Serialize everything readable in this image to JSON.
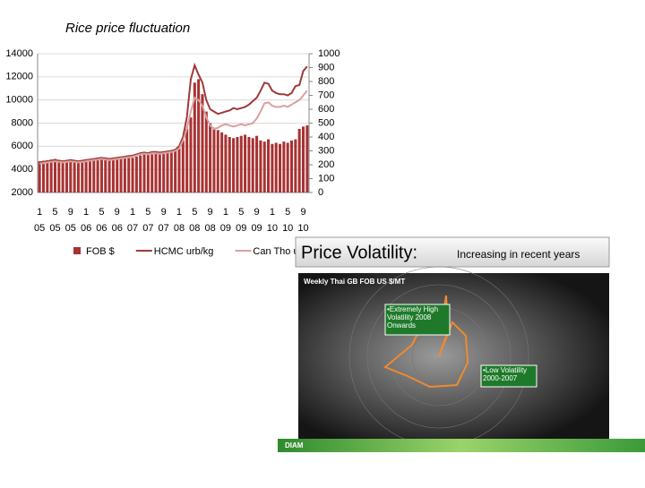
{
  "chart_data": {
    "type": "bar_line",
    "title": "Rice price fluctuation",
    "categories": [
      "1 05",
      null,
      null,
      null,
      "5 05",
      null,
      null,
      null,
      "9 05",
      null,
      null,
      null,
      "1 06",
      null,
      null,
      null,
      "5 06",
      null,
      null,
      null,
      "9 06",
      null,
      null,
      null,
      "1 07",
      null,
      null,
      null,
      "5 07",
      null,
      null,
      null,
      "9 07",
      null,
      null,
      null,
      "1 08",
      null,
      null,
      null,
      "5 08",
      null,
      null,
      null,
      "9 08",
      null,
      null,
      null,
      "1 09",
      null,
      null,
      null,
      "5 09",
      null,
      null,
      null,
      "9 09",
      null,
      null,
      null,
      "1 10",
      null,
      null,
      null,
      "5 10",
      null,
      null,
      null,
      "9 10",
      null
    ],
    "series": [
      {
        "name": "FOB $",
        "kind": "bar",
        "color": "#a83232",
        "values": [
          4700,
          4750,
          4800,
          4850,
          4900,
          4800,
          4750,
          4800,
          4850,
          4800,
          4750,
          4800,
          4700,
          4750,
          4800,
          4850,
          4900,
          4850,
          4800,
          4900,
          4950,
          5000,
          4950,
          5000,
          5000,
          5100,
          5200,
          5300,
          5250,
          5300,
          5400,
          5350,
          5400,
          5500,
          5600,
          5700,
          6000,
          6500,
          7500,
          8500,
          11500,
          11800,
          10500,
          9000,
          8000,
          7600,
          7400,
          7200,
          7000,
          6800,
          6700,
          6800,
          6900,
          7000,
          6800,
          6700,
          6900,
          6500,
          6400,
          6600,
          6200,
          6300,
          6200,
          6400,
          6300,
          6500,
          6600,
          7500,
          7700,
          7800
        ]
      },
      {
        "name": "HCMC urb/kg",
        "kind": "line",
        "color": "#9e3a3a",
        "values": [
          4600,
          4650,
          4700,
          4750,
          4800,
          4750,
          4700,
          4750,
          4800,
          4750,
          4700,
          4750,
          4800,
          4850,
          4900,
          4950,
          5000,
          4950,
          4900,
          4950,
          5000,
          5050,
          5100,
          5150,
          5200,
          5300,
          5400,
          5450,
          5400,
          5500,
          5500,
          5450,
          5500,
          5550,
          5600,
          5700,
          6000,
          6800,
          8500,
          11800,
          13000,
          12200,
          11500,
          10000,
          9200,
          9000,
          8800,
          8900,
          9000,
          9100,
          9300,
          9200,
          9300,
          9400,
          9600,
          9900,
          10200,
          10800,
          11500,
          11400,
          10800,
          10600,
          10500,
          10500,
          10400,
          10600,
          11200,
          11300,
          12500,
          12900
        ]
      },
      {
        "name": "Can Tho urb/kg",
        "kind": "line",
        "color": "#d9a0a0",
        "values": [
          4500,
          4550,
          4600,
          4650,
          4700,
          4650,
          4600,
          4650,
          4700,
          4650,
          4600,
          4650,
          4700,
          4750,
          4800,
          4850,
          4900,
          4850,
          4800,
          4850,
          4900,
          4950,
          5000,
          5050,
          5100,
          5200,
          5300,
          5350,
          5300,
          5400,
          5400,
          5350,
          5400,
          5450,
          5500,
          5600,
          5800,
          6500,
          7500,
          9000,
          10200,
          10000,
          9500,
          8500,
          7800,
          7500,
          7600,
          7800,
          7900,
          7800,
          7700,
          7800,
          7900,
          7800,
          7900,
          8000,
          8400,
          9000,
          9700,
          9800,
          9500,
          9400,
          9400,
          9500,
          9400,
          9600,
          9800,
          10000,
          10400,
          10800
        ]
      }
    ],
    "ylim": [
      2000,
      14000
    ],
    "yticks": [
      2000,
      4000,
      6000,
      8000,
      10000,
      12000,
      14000
    ],
    "y2lim": [
      0,
      1000
    ],
    "y2ticks": [
      0,
      100,
      200,
      300,
      400,
      500,
      600,
      700,
      800,
      900,
      1000
    ],
    "grid": true,
    "legend": "bottom"
  },
  "panel": {
    "banner_title": "Price Volatility:",
    "banner_subtitle": "Increasing in recent years",
    "image_title": "Weekly Thai GB FOB US $/MT",
    "note_high": "•Extremely High Volatility 2008 Onwards",
    "note_low": "•Low Volatility 2000-2007",
    "logo": "DIAM"
  }
}
